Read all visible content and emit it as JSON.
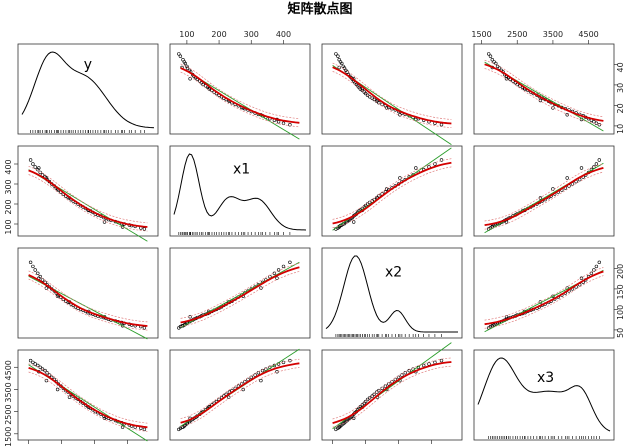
{
  "chart_data": {
    "type": "scatter",
    "title": "矩阵散点图",
    "variables": [
      {
        "name": "y",
        "label": "y",
        "range": [
          8,
          48
        ],
        "ticks": [
          10,
          20,
          30,
          40
        ],
        "density_peaks": [
          {
            "center": 16,
            "height": 1.0,
            "width": 4.5
          },
          {
            "center": 27,
            "height": 0.8,
            "width": 6.5
          }
        ]
      },
      {
        "name": "x1",
        "label": "x1",
        "range": [
          60,
          470
        ],
        "ticks": [
          100,
          200,
          300,
          400
        ],
        "density_peaks": [
          {
            "center": 110,
            "height": 1.0,
            "width": 28
          },
          {
            "center": 230,
            "height": 0.4,
            "width": 35
          },
          {
            "center": 320,
            "height": 0.4,
            "width": 40
          }
        ]
      },
      {
        "name": "x2",
        "label": "x2",
        "range": [
          40,
          240
        ],
        "ticks": [
          50,
          100,
          150,
          200
        ],
        "density_peaks": [
          {
            "center": 85,
            "height": 1.0,
            "width": 18
          },
          {
            "center": 148,
            "height": 0.28,
            "width": 12
          }
        ]
      },
      {
        "name": "x3",
        "label": "x3",
        "range": [
          1400,
          5100
        ],
        "ticks": [
          1500,
          2500,
          3500,
          4500
        ],
        "density_peaks": [
          {
            "center": 2000,
            "height": 1.0,
            "width": 450
          },
          {
            "center": 3400,
            "height": 0.6,
            "width": 700
          },
          {
            "center": 4300,
            "height": 0.4,
            "width": 300
          }
        ]
      }
    ],
    "points": {
      "y": [
        45.1,
        44.0,
        42.3,
        41.2,
        40.5,
        39.0,
        38.2,
        37.1,
        36.3,
        35.0,
        34.2,
        33.5,
        32.8,
        31.9,
        31.0,
        30.2,
        29.5,
        28.8,
        28.0,
        27.3,
        26.5,
        25.8,
        25.0,
        24.2,
        23.5,
        22.9,
        22.0,
        21.3,
        20.5,
        19.8,
        19.0,
        18.4,
        17.8,
        17.0,
        16.3,
        15.6,
        15.0,
        14.2,
        13.5,
        12.8,
        12.0,
        11.3,
        10.6,
        33.0,
        28.2,
        22.4,
        18.8,
        15.4,
        13.1,
        38.5
      ],
      "x1": [
        75,
        80,
        88,
        92,
        95,
        100,
        102,
        108,
        112,
        118,
        122,
        128,
        132,
        140,
        145,
        150,
        158,
        165,
        170,
        178,
        185,
        192,
        200,
        208,
        215,
        222,
        232,
        240,
        250,
        260,
        270,
        280,
        290,
        300,
        312,
        322,
        335,
        345,
        358,
        372,
        385,
        400,
        420,
        110,
        168,
        230,
        275,
        330,
        380,
        85
      ],
      "x2": [
        55,
        58,
        60,
        62,
        64,
        66,
        68,
        70,
        72,
        74,
        76,
        78,
        80,
        82,
        84,
        86,
        88,
        90,
        92,
        95,
        98,
        100,
        103,
        106,
        110,
        113,
        117,
        120,
        125,
        130,
        135,
        140,
        145,
        150,
        155,
        160,
        166,
        172,
        180,
        188,
        196,
        205,
        215,
        82,
        95,
        118,
        132,
        152,
        176,
        60
      ],
      "x3": [
        1700,
        1750,
        1800,
        1850,
        1900,
        1950,
        2000,
        2050,
        2100,
        2150,
        2200,
        2250,
        2300,
        2380,
        2450,
        2500,
        2580,
        2650,
        2720,
        2800,
        2880,
        2950,
        3050,
        3120,
        3200,
        3280,
        3380,
        3450,
        3550,
        3650,
        3750,
        3850,
        3950,
        4050,
        4150,
        4250,
        4350,
        4420,
        4500,
        4580,
        4650,
        4720,
        4800,
        2200,
        2700,
        3150,
        3500,
        3900,
        4300,
        1800
      ]
    }
  }
}
